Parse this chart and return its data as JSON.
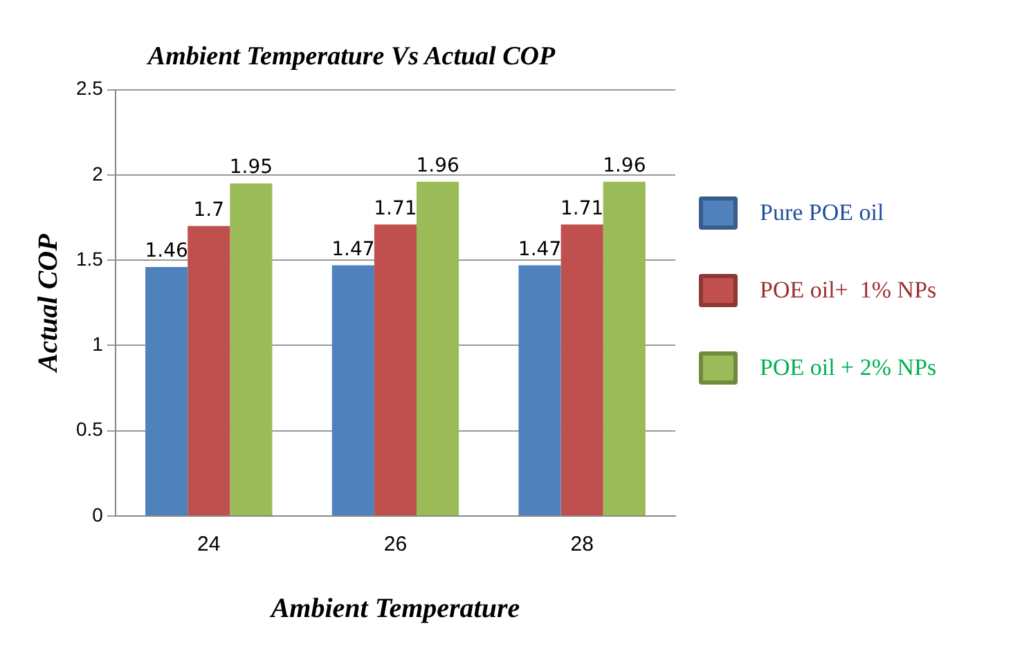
{
  "chart_data": {
    "type": "bar",
    "title": "Ambient Temperature Vs Actual COP",
    "xlabel": "Ambient Temperature",
    "ylabel": "Actual COP",
    "categories": [
      "24",
      "26",
      "28"
    ],
    "series": [
      {
        "name": "Pure POE oil",
        "color": "#4f81bd",
        "values": [
          1.46,
          1.47,
          1.47
        ]
      },
      {
        "name": "POE oil+  1% NPs",
        "color": "#c0504d",
        "values": [
          1.7,
          1.71,
          1.71
        ]
      },
      {
        "name": "POE oil + 2% NPs",
        "color": "#9bbb59",
        "values": [
          1.95,
          1.96,
          1.96
        ]
      }
    ],
    "ylim": [
      0,
      2.5
    ],
    "yticks": [
      0,
      0.5,
      1,
      1.5,
      2,
      2.5
    ],
    "grid": "y",
    "legend": "right",
    "data_labels": true
  }
}
